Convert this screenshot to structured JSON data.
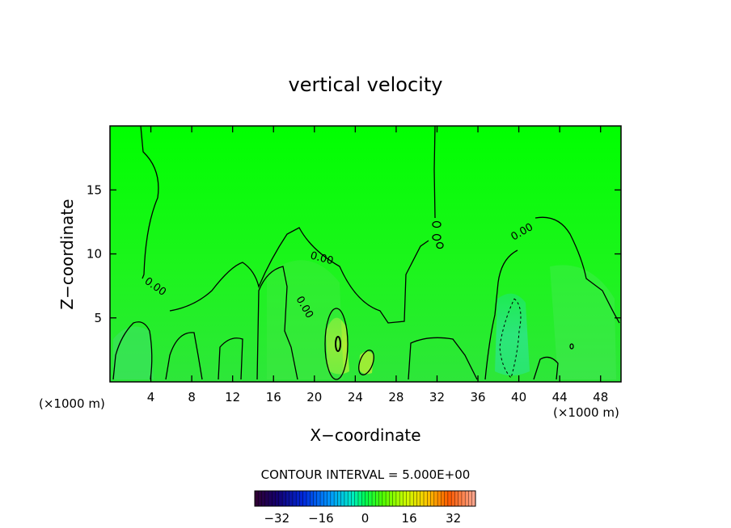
{
  "chart_data": {
    "type": "heatmap",
    "title": "vertical velocity",
    "xlabel": "X−coordinate",
    "ylabel": "Z−coordinate",
    "x_unit": "(×1000 m)",
    "x_unit_right": "(×1000 m)",
    "xlim": [
      0,
      50
    ],
    "ylim": [
      0,
      20
    ],
    "x_ticks": [
      4,
      8,
      12,
      16,
      20,
      24,
      28,
      32,
      36,
      40,
      44,
      48
    ],
    "y_ticks": [
      5,
      10,
      15
    ],
    "contour_interval": "CONTOUR INTERVAL = 5.000E+00",
    "colorbar": {
      "min": -40,
      "max": 40,
      "tick_values": [
        -32,
        -16,
        0,
        16,
        32
      ],
      "tick_labels": [
        "−32",
        "−16",
        "0",
        "16",
        "32"
      ]
    },
    "contour_labels": [
      {
        "text": "0.00",
        "x": 3.5,
        "z": 7.5
      },
      {
        "text": "0.00",
        "x": 18.5,
        "z": 6.0
      },
      {
        "text": "0.00",
        "x": 21.0,
        "z": 9.8
      },
      {
        "text": "0.00",
        "x": 41.0,
        "z": 12.0
      }
    ],
    "grid": false,
    "background_color": "#00ff00"
  }
}
